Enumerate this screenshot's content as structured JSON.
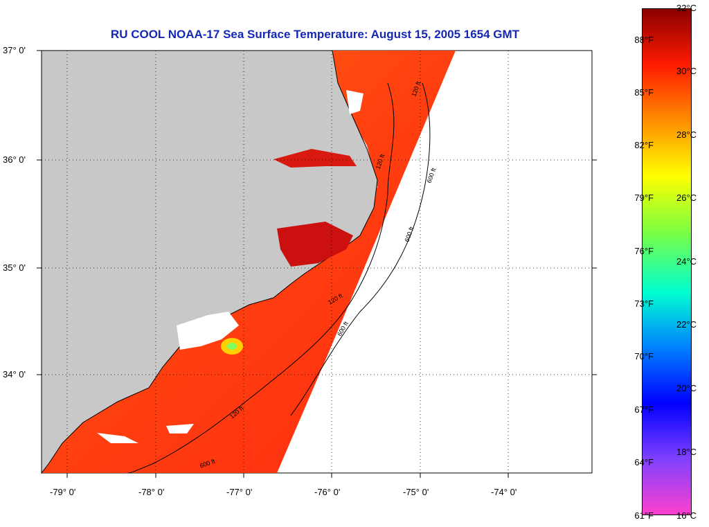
{
  "title": "RU COOL  NOAA-17  Sea Surface Temperature:  August 15, 2005 1654 GMT",
  "latitude_labels": [
    "37° 0'",
    "36° 0'",
    "35° 0'",
    "34° 0'"
  ],
  "longitude_labels": [
    "-79° 0'",
    "-78° 0'",
    "-77° 0'",
    "-76° 0'",
    "-75° 0'",
    "-74° 0'"
  ],
  "contour_labels": [
    "120 ft",
    "600 ft",
    "120 ft",
    "600 ft",
    "120 ft",
    "600 ft",
    "120 ft",
    "600 ft"
  ],
  "colorbar": {
    "fahrenheit_labels": [
      "88°F",
      "85°F",
      "82°F",
      "79°F",
      "76°F",
      "73°F",
      "70°F",
      "67°F",
      "64°F",
      "61°F"
    ],
    "celsius_labels": [
      "32°C",
      "30°C",
      "28°C",
      "26°C",
      "24°C",
      "22°C",
      "20°C",
      "18°C",
      "16°C"
    ],
    "colors": [
      "#8b0000",
      "#ff1a00",
      "#ff8c00",
      "#ffff00",
      "#7cff40",
      "#00ffd0",
      "#0080ff",
      "#0000ff",
      "#8040ff",
      "#ff40d0"
    ]
  },
  "map_colors": {
    "land": "#c8c8c8",
    "water_sst": "#ff3a10",
    "warm_inlet": "#cc1010",
    "cool_patch": "#ffd000",
    "ocean_no_data": "#ffffff"
  }
}
